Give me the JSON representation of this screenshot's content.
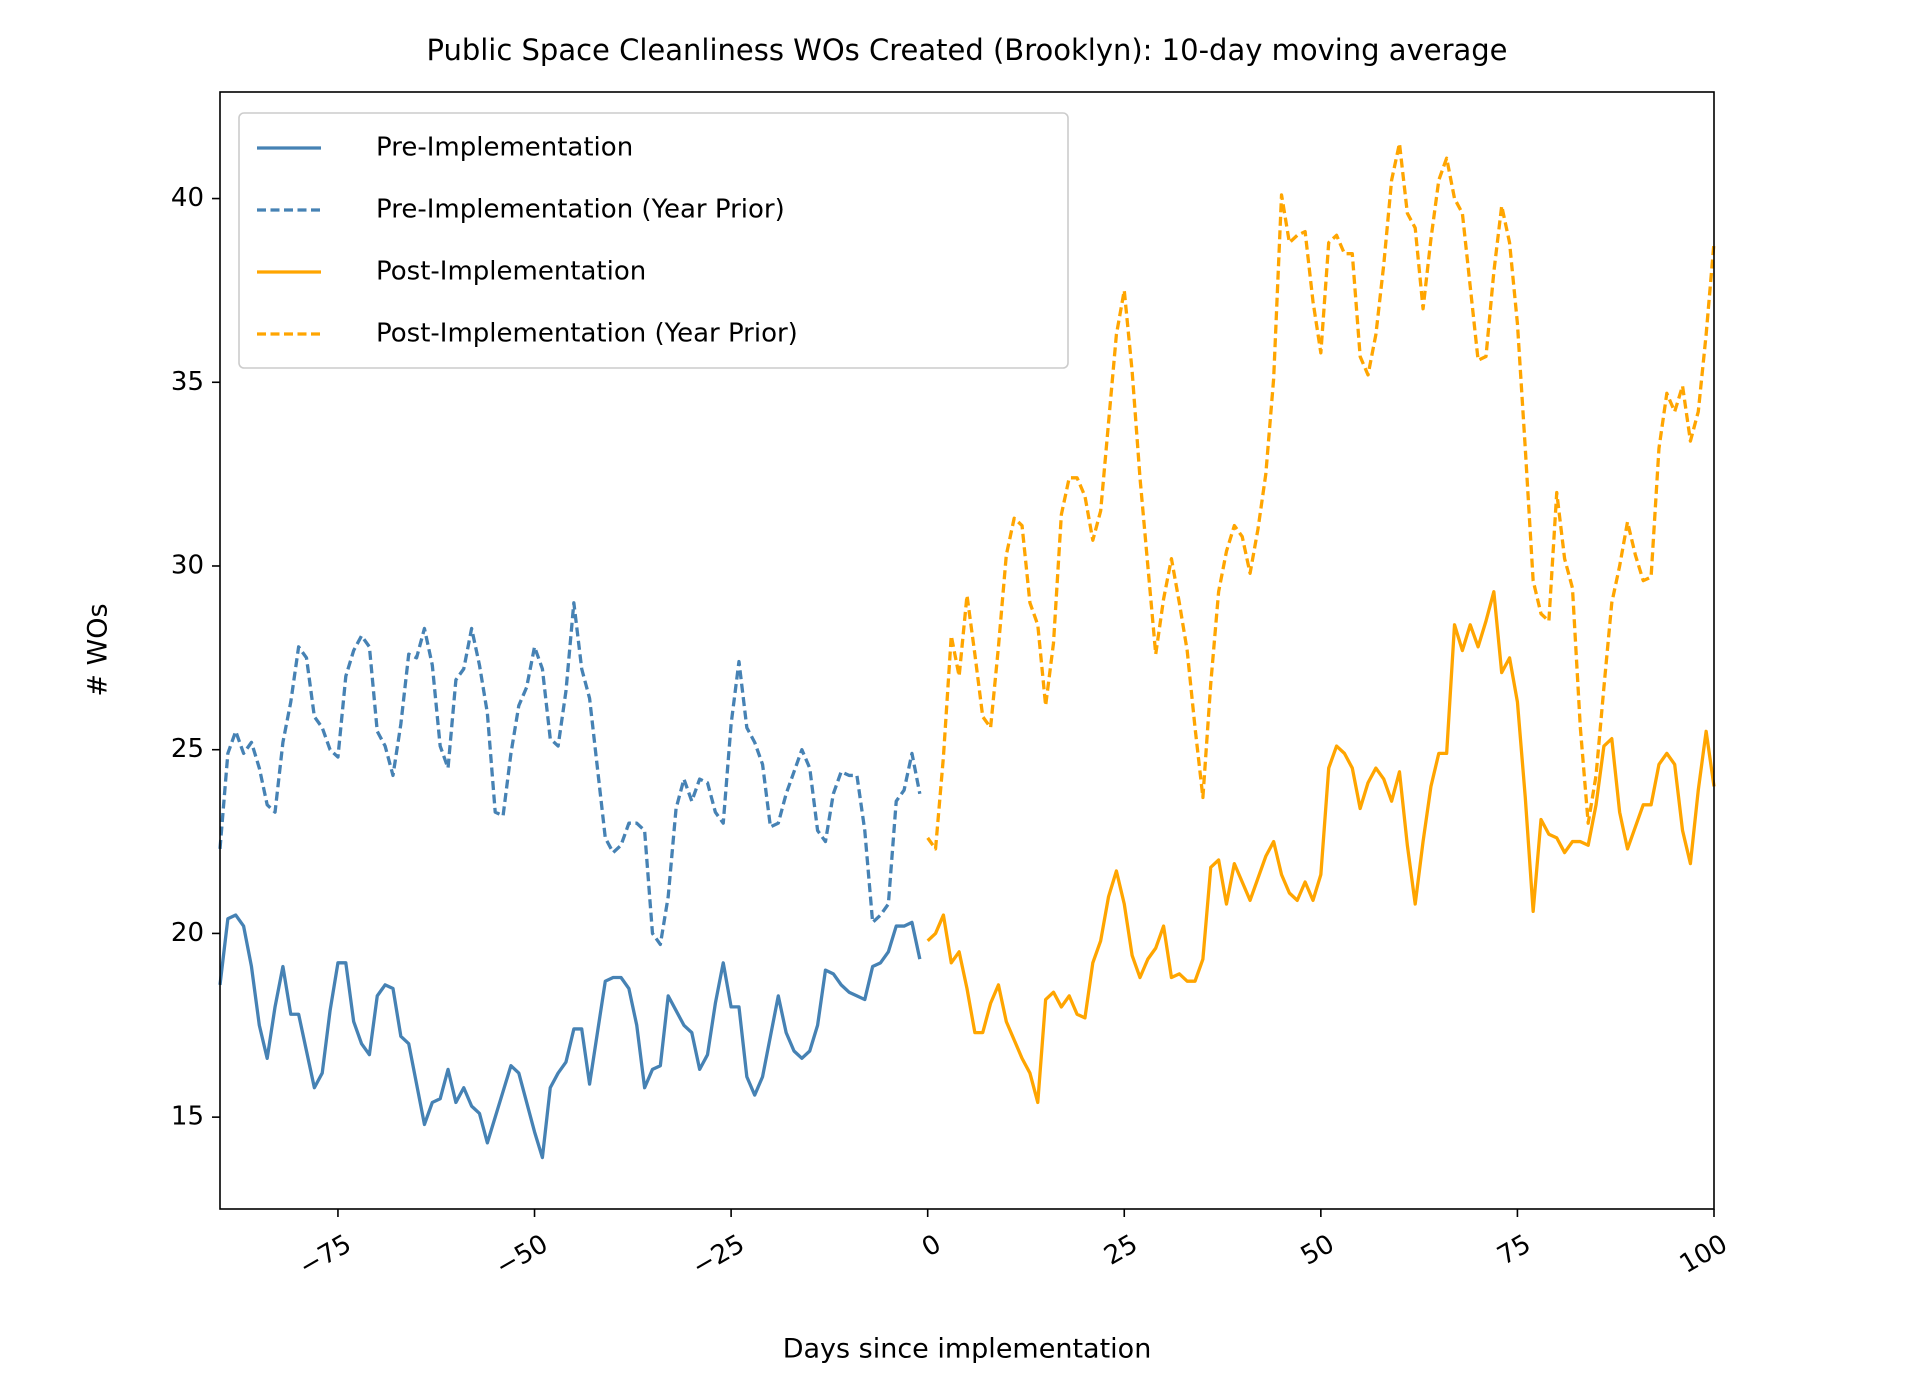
{
  "chart_data": {
    "type": "line",
    "title": "Public Space Cleanliness WOs Created (Brooklyn): 10-day moving average",
    "x_label": "Days since implementation",
    "y_label": "# WOs",
    "xlim": [
      -90,
      100
    ],
    "ylim": [
      12.5,
      42.9
    ],
    "xticks": [
      {
        "value": -75,
        "label": "−75"
      },
      {
        "value": -50,
        "label": "−50"
      },
      {
        "value": -25,
        "label": "−25"
      },
      0,
      25,
      50,
      75,
      100
    ],
    "yticks": [
      15,
      20,
      25,
      30,
      35,
      40
    ],
    "grid": false,
    "legend": "upper left",
    "series": [
      {
        "name": "Pre-Implementation",
        "color": "#4682b4",
        "linestyle": "solid",
        "x": [
          -90,
          -89,
          -88,
          -87,
          -86,
          -85,
          -84,
          -83,
          -82,
          -81,
          -80,
          -79,
          -78,
          -77,
          -76,
          -75,
          -74,
          -73,
          -72,
          -71,
          -70,
          -69,
          -68,
          -67,
          -66,
          -65,
          -64,
          -63,
          -62,
          -61,
          -60,
          -59,
          -58,
          -57,
          -56,
          -55,
          -54,
          -53,
          -52,
          -51,
          -50,
          -49,
          -48,
          -47,
          -46,
          -45,
          -44,
          -43,
          -42,
          -41,
          -40,
          -39,
          -38,
          -37,
          -36,
          -35,
          -34,
          -33,
          -32,
          -31,
          -30,
          -29,
          -28,
          -27,
          -26,
          -25,
          -24,
          -23,
          -22,
          -21,
          -20,
          -19,
          -18,
          -17,
          -16,
          -15,
          -14,
          -13,
          -12,
          -11,
          -10,
          -9,
          -8,
          -7,
          -6,
          -5,
          -4,
          -3,
          -2,
          -1
        ],
        "values": [
          18.6,
          20.4,
          20.5,
          20.2,
          19.1,
          17.5,
          16.6,
          18.0,
          19.1,
          17.8,
          17.8,
          16.8,
          15.8,
          16.2,
          17.9,
          19.2,
          19.2,
          17.6,
          17.0,
          16.7,
          18.3,
          18.6,
          18.5,
          17.2,
          17.0,
          15.9,
          14.8,
          15.4,
          15.5,
          16.3,
          15.4,
          15.8,
          15.3,
          15.1,
          14.3,
          15.0,
          15.7,
          16.4,
          16.2,
          15.4,
          14.6,
          13.9,
          15.8,
          16.2,
          16.5,
          17.4,
          17.4,
          15.9,
          17.3,
          18.7,
          18.8,
          18.8,
          18.5,
          17.5,
          15.8,
          16.3,
          16.4,
          18.3,
          17.9,
          17.5,
          17.3,
          16.3,
          16.7,
          18.1,
          19.2,
          18.0,
          18.0,
          16.1,
          15.6,
          16.1,
          17.2,
          18.3,
          17.3,
          16.8,
          16.6,
          16.8,
          17.5,
          19.0,
          18.9,
          18.6,
          18.4,
          18.3,
          18.2,
          19.1,
          19.2,
          19.5,
          20.2,
          20.2,
          20.3,
          19.3
        ]
      },
      {
        "name": "Pre-Implementation (Year Prior)",
        "color": "#4682b4",
        "linestyle": "dashed",
        "x": [
          -90,
          -89,
          -88,
          -87,
          -86,
          -85,
          -84,
          -83,
          -82,
          -81,
          -80,
          -79,
          -78,
          -77,
          -76,
          -75,
          -74,
          -73,
          -72,
          -71,
          -70,
          -69,
          -68,
          -67,
          -66,
          -65,
          -64,
          -63,
          -62,
          -61,
          -60,
          -59,
          -58,
          -57,
          -56,
          -55,
          -54,
          -53,
          -52,
          -51,
          -50,
          -49,
          -48,
          -47,
          -46,
          -45,
          -44,
          -43,
          -42,
          -41,
          -40,
          -39,
          -38,
          -37,
          -36,
          -35,
          -34,
          -33,
          -32,
          -31,
          -30,
          -29,
          -28,
          -27,
          -26,
          -25,
          -24,
          -23,
          -22,
          -21,
          -20,
          -19,
          -18,
          -17,
          -16,
          -15,
          -14,
          -13,
          -12,
          -11,
          -10,
          -9,
          -8,
          -7,
          -6,
          -5,
          -4,
          -3,
          -2,
          -1
        ],
        "values": [
          22.3,
          24.9,
          25.5,
          24.9,
          25.2,
          24.5,
          23.5,
          23.3,
          25.2,
          26.3,
          27.8,
          27.5,
          25.9,
          25.6,
          25.0,
          24.8,
          27.0,
          27.7,
          28.1,
          27.8,
          25.5,
          25.1,
          24.3,
          25.7,
          27.6,
          27.5,
          28.3,
          27.3,
          25.1,
          24.5,
          26.9,
          27.2,
          28.3,
          27.3,
          26.0,
          23.3,
          23.2,
          24.9,
          26.2,
          26.7,
          27.8,
          27.2,
          25.3,
          25.1,
          26.6,
          29.0,
          27.2,
          26.4,
          24.5,
          22.6,
          22.2,
          22.4,
          23.0,
          23.0,
          22.8,
          20.0,
          19.7,
          21.0,
          23.4,
          24.2,
          23.6,
          24.2,
          24.1,
          23.3,
          23.0,
          25.7,
          27.4,
          25.6,
          25.2,
          24.6,
          22.9,
          23.0,
          23.8,
          24.4,
          25.0,
          24.5,
          22.8,
          22.5,
          23.8,
          24.4,
          24.3,
          24.3,
          22.8,
          20.3,
          20.5,
          20.8,
          23.6,
          23.9,
          24.9,
          23.8
        ]
      },
      {
        "name": "Post-Implementation",
        "color": "#ffa500",
        "linestyle": "solid",
        "x": [
          0,
          1,
          2,
          3,
          4,
          5,
          6,
          7,
          8,
          9,
          10,
          11,
          12,
          13,
          14,
          15,
          16,
          17,
          18,
          19,
          20,
          21,
          22,
          23,
          24,
          25,
          26,
          27,
          28,
          29,
          30,
          31,
          32,
          33,
          34,
          35,
          36,
          37,
          38,
          39,
          40,
          41,
          42,
          43,
          44,
          45,
          46,
          47,
          48,
          49,
          50,
          51,
          52,
          53,
          54,
          55,
          56,
          57,
          58,
          59,
          60,
          61,
          62,
          63,
          64,
          65,
          66,
          67,
          68,
          69,
          70,
          71,
          72,
          73,
          74,
          75,
          76,
          77,
          78,
          79,
          80,
          81,
          82,
          83,
          84,
          85,
          86,
          87,
          88,
          89,
          90,
          91,
          92,
          93,
          94,
          95,
          96,
          97,
          98,
          99,
          100
        ],
        "values": [
          19.8,
          20.0,
          20.5,
          19.2,
          19.5,
          18.5,
          17.3,
          17.3,
          18.1,
          18.6,
          17.6,
          17.1,
          16.6,
          16.2,
          15.4,
          18.2,
          18.4,
          18.0,
          18.3,
          17.8,
          17.7,
          19.2,
          19.8,
          21.0,
          21.7,
          20.8,
          19.4,
          18.8,
          19.3,
          19.6,
          20.2,
          18.8,
          18.9,
          18.7,
          18.7,
          19.3,
          21.8,
          22.0,
          20.8,
          21.9,
          21.4,
          20.9,
          21.5,
          22.1,
          22.5,
          21.6,
          21.1,
          20.9,
          21.4,
          20.9,
          21.6,
          24.5,
          25.1,
          24.9,
          24.5,
          23.4,
          24.1,
          24.5,
          24.2,
          23.6,
          24.4,
          22.4,
          20.8,
          22.5,
          24.0,
          24.9,
          24.9,
          28.4,
          27.7,
          28.4,
          27.8,
          28.5,
          29.3,
          27.1,
          27.5,
          26.3,
          23.7,
          20.6,
          23.1,
          22.7,
          22.6,
          22.2,
          22.5,
          22.5,
          22.4,
          23.5,
          25.1,
          25.3,
          23.3,
          22.3,
          22.9,
          23.5,
          23.5,
          24.6,
          24.9,
          24.6,
          22.8,
          21.9,
          23.9,
          25.5,
          24.0
        ]
      },
      {
        "name": "Post-Implementation (Year Prior)",
        "color": "#ffa500",
        "linestyle": "dashed",
        "x": [
          0,
          1,
          2,
          3,
          4,
          5,
          6,
          7,
          8,
          9,
          10,
          11,
          12,
          13,
          14,
          15,
          16,
          17,
          18,
          19,
          20,
          21,
          22,
          23,
          24,
          25,
          26,
          27,
          28,
          29,
          30,
          31,
          32,
          33,
          34,
          35,
          36,
          37,
          38,
          39,
          40,
          41,
          42,
          43,
          44,
          45,
          46,
          47,
          48,
          49,
          50,
          51,
          52,
          53,
          54,
          55,
          56,
          57,
          58,
          59,
          60,
          61,
          62,
          63,
          64,
          65,
          66,
          67,
          68,
          69,
          70,
          71,
          72,
          73,
          74,
          75,
          76,
          77,
          78,
          79,
          80,
          81,
          82,
          83,
          84,
          85,
          86,
          87,
          88,
          89,
          90,
          91,
          92,
          93,
          94,
          95,
          96,
          97,
          98,
          99,
          100
        ],
        "values": [
          22.6,
          22.3,
          24.8,
          28.1,
          27.0,
          29.2,
          27.6,
          25.9,
          25.6,
          27.8,
          30.3,
          31.3,
          31.1,
          29.0,
          28.4,
          26.2,
          27.9,
          31.4,
          32.4,
          32.4,
          31.9,
          30.7,
          31.5,
          33.9,
          36.3,
          37.5,
          35.3,
          32.4,
          30.0,
          27.6,
          29.1,
          30.2,
          29.0,
          27.7,
          25.6,
          23.7,
          26.8,
          29.3,
          30.4,
          31.1,
          30.8,
          29.8,
          31.0,
          32.5,
          35.1,
          40.1,
          38.8,
          39.0,
          39.1,
          37.2,
          35.8,
          38.8,
          39.0,
          38.5,
          38.5,
          35.7,
          35.2,
          36.3,
          38.2,
          40.5,
          41.5,
          39.6,
          39.2,
          37.0,
          38.9,
          40.5,
          41.1,
          40.0,
          39.6,
          37.6,
          35.6,
          35.7,
          38.0,
          39.8,
          38.8,
          36.6,
          33.2,
          29.6,
          28.7,
          28.5,
          32.0,
          30.2,
          29.4,
          25.6,
          23.0,
          24.3,
          26.7,
          29.0,
          30.0,
          31.2,
          30.3,
          29.6,
          29.7,
          33.2,
          34.7,
          34.2,
          34.9,
          33.4,
          34.2,
          36.3,
          38.8
        ]
      }
    ]
  }
}
